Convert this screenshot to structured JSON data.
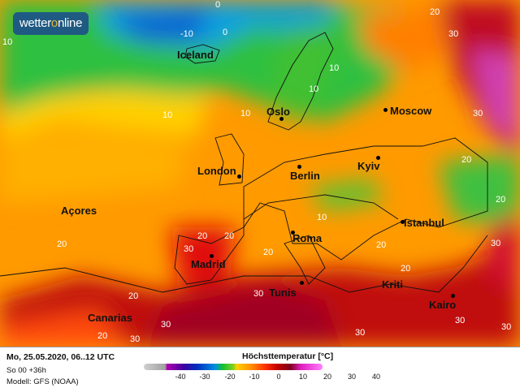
{
  "brand": {
    "logo_text_a": "wetter",
    "logo_text_b": "o",
    "logo_text_c": "nline"
  },
  "map": {
    "cities": [
      {
        "name": "Iceland",
        "marker": false
      },
      {
        "name": "Oslo",
        "marker": true
      },
      {
        "name": "Moscow",
        "marker": true
      },
      {
        "name": "London",
        "marker": true
      },
      {
        "name": "Berlin",
        "marker": true
      },
      {
        "name": "Kyiv",
        "marker": true
      },
      {
        "name": "Açores",
        "marker": false
      },
      {
        "name": "Istanbul",
        "marker": true
      },
      {
        "name": "Roma",
        "marker": true
      },
      {
        "name": "Madrid",
        "marker": true
      },
      {
        "name": "Tunis",
        "marker": true
      },
      {
        "name": "Kriti",
        "marker": false
      },
      {
        "name": "Kairo",
        "marker": true
      },
      {
        "name": "Canarias",
        "marker": false
      }
    ],
    "isotherm_labels": [
      "0",
      "0",
      "-10",
      "10",
      "20",
      "30",
      "10",
      "10",
      "10",
      "10",
      "10",
      "20",
      "20",
      "20",
      "20",
      "20",
      "20",
      "20",
      "20",
      "20",
      "30",
      "30",
      "30",
      "30",
      "30",
      "30",
      "30",
      "20",
      "30",
      "30"
    ]
  },
  "footer": {
    "date": "Mo, 25.05.2020, 06..12 UTC",
    "run": "So 00 +36h",
    "model": "Modell: GFS (NOAA)",
    "legend_title": "Höchsttemperatur [°C]",
    "legend_ticks": [
      "-40",
      "-30",
      "-20",
      "-10",
      "0",
      "10",
      "20",
      "30",
      "40"
    ]
  },
  "colors": {
    "cold": "#1060d0",
    "cool": "#20c040",
    "mild": "#ffd000",
    "warm": "#ff8000",
    "hot": "#d01010",
    "very_hot": "#a00030",
    "extreme": "#e040c0",
    "logo_bg": "#1f5a82"
  }
}
